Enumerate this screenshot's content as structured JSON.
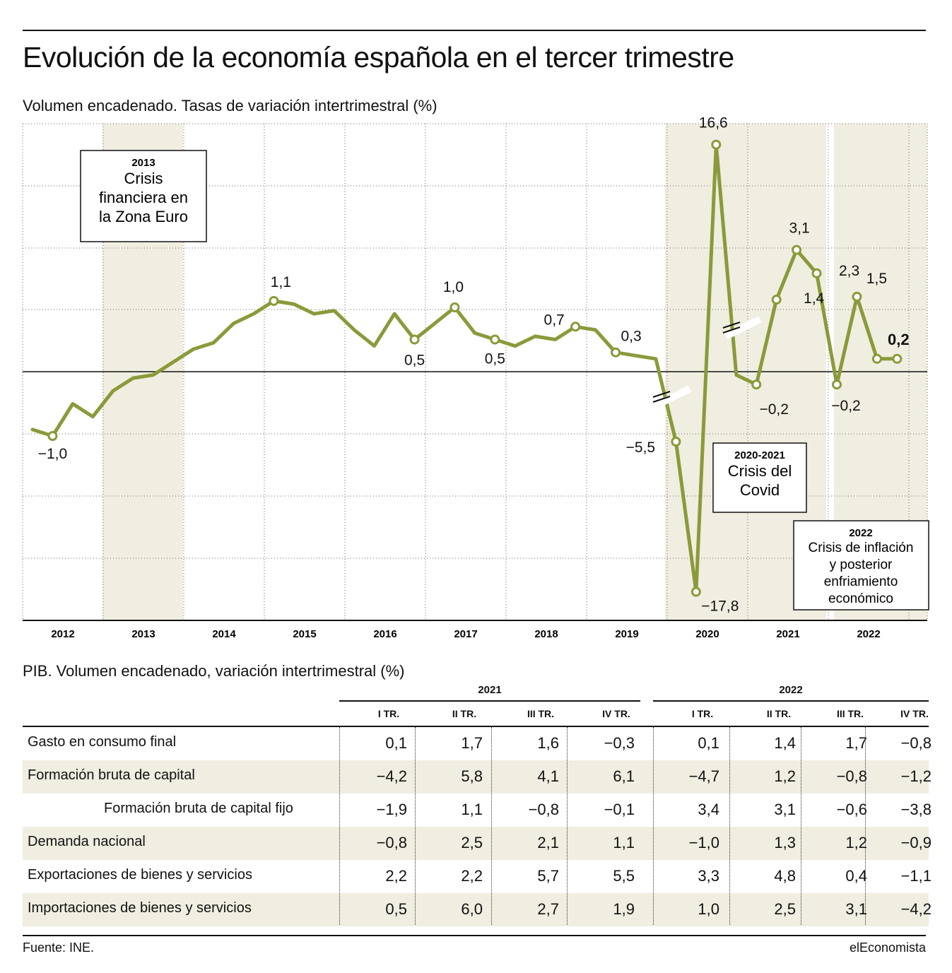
{
  "title": "Evolución de la economía española en el tercer trimestre",
  "subtitle": "Volumen encadenado. Tasas de variación intertrimestral (%)",
  "colors": {
    "line": "#8a9a3a",
    "shade": "#efeee0",
    "text": "#111111"
  },
  "chart_data": {
    "type": "line",
    "title": "Volumen encadenado. Tasas de variación intertrimestral (%)",
    "x_categories": [
      "2012",
      "2013",
      "2014",
      "2015",
      "2016",
      "2017",
      "2018",
      "2019",
      "2020",
      "2021",
      "2022"
    ],
    "axis_breaks": [
      "2020 (escala cortada)",
      "2020-2021 (escala cortada)"
    ],
    "series": [
      {
        "values": [
          -0.9,
          -1.0,
          -0.5,
          -0.7,
          -0.3,
          -0.1,
          -0.05,
          0.15,
          0.35,
          0.45,
          0.75,
          0.9,
          1.1,
          1.05,
          0.9,
          0.95,
          0.65,
          0.4,
          0.9,
          0.5,
          0.75,
          1.0,
          0.6,
          0.5,
          0.4,
          0.55,
          0.5,
          0.7,
          0.65,
          0.3,
          0.25,
          0.2,
          -5.5,
          -17.8,
          16.6,
          -0.05,
          -0.2,
          1.4,
          3.1,
          2.3,
          -0.2,
          1.5,
          0.2,
          0.2
        ],
        "labels": [
          {
            "index": 1,
            "text": "−1,0"
          },
          {
            "index": 12,
            "text": "1,1"
          },
          {
            "index": 19,
            "text": "0,5"
          },
          {
            "index": 21,
            "text": "1,0"
          },
          {
            "index": 23,
            "text": "0,5"
          },
          {
            "index": 27,
            "text": "0,7"
          },
          {
            "index": 29,
            "text": "0,3"
          },
          {
            "index": 32,
            "text": "−5,5"
          },
          {
            "index": 33,
            "text": "−17,8"
          },
          {
            "index": 34,
            "text": "16,6"
          },
          {
            "index": 36,
            "text": "−0,2"
          },
          {
            "index": 37,
            "text": "1,4"
          },
          {
            "index": 38,
            "text": "3,1"
          },
          {
            "index": 39,
            "text": "2,3"
          },
          {
            "index": 40,
            "text": "−0,2"
          },
          {
            "index": 41,
            "text": "1,5"
          },
          {
            "index": 43,
            "text": "0,2"
          }
        ]
      }
    ],
    "marker_indices": [
      1,
      12,
      19,
      21,
      23,
      27,
      29,
      32,
      33,
      34,
      36,
      37,
      38,
      39,
      40,
      41,
      42,
      43
    ],
    "shaded_periods": [
      {
        "years": "2013",
        "label_year": "2013",
        "label": [
          "Crisis",
          "financiera en",
          "la Zona Euro"
        ]
      },
      {
        "years": "2020-2021",
        "label_year": "2020-2021",
        "label": [
          "Crisis del",
          "Covid"
        ]
      },
      {
        "years": "2022",
        "label_year": "2022",
        "label": [
          "Crisis de inflación",
          "y posterior",
          "enfriamiento",
          "económico"
        ]
      }
    ],
    "grid": true,
    "zero_line": true
  },
  "table": {
    "title": "PIB. Volumen encadenado, variación intertrimestral (%)",
    "years": [
      "2021",
      "2022"
    ],
    "columns": [
      "I TR.",
      "II TR.",
      "III TR.",
      "IV TR.",
      "I TR.",
      "II TR.",
      "III TR.",
      "IV TR."
    ],
    "rows": [
      {
        "label": "Gasto en consumo final",
        "values": [
          "0,1",
          "1,7",
          "1,6",
          "−0,3",
          "0,1",
          "1,4",
          "1,7",
          "−0,8"
        ]
      },
      {
        "label": "Formación bruta de capital",
        "values": [
          "−4,2",
          "5,8",
          "4,1",
          "6,1",
          "−4,7",
          "1,2",
          "−0,8",
          "−1,2"
        ]
      },
      {
        "label": "Formación bruta de capital fijo",
        "values": [
          "−1,9",
          "1,1",
          "−0,8",
          "−0,1",
          "3,4",
          "3,1",
          "−0,6",
          "−3,8"
        ]
      },
      {
        "label": "Demanda nacional",
        "values": [
          "−0,8",
          "2,5",
          "2,1",
          "1,1",
          "−1,0",
          "1,3",
          "1,2",
          "−0,9"
        ]
      },
      {
        "label": "Exportaciones de bienes y servicios",
        "values": [
          "2,2",
          "2,2",
          "5,7",
          "5,5",
          "3,3",
          "4,8",
          "0,4",
          "−1,1"
        ]
      },
      {
        "label": "Importaciones de bienes y servicios",
        "values": [
          "0,5",
          "6,0",
          "2,7",
          "1,9",
          "1,0",
          "2,5",
          "3,1",
          "−4,2"
        ]
      }
    ]
  },
  "footer": {
    "source": "Fuente: INE.",
    "brand": "elEconomista"
  }
}
